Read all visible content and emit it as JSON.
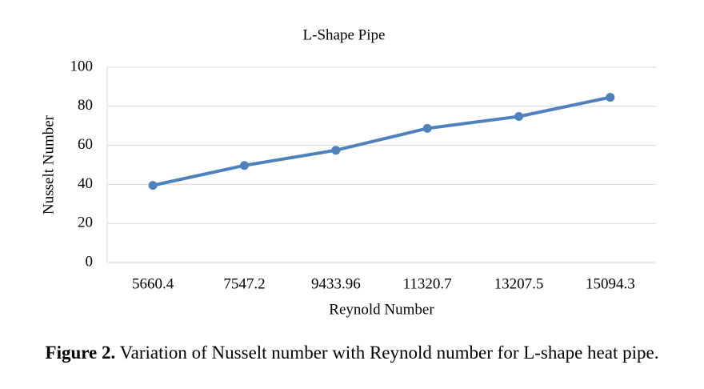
{
  "chart_data": {
    "type": "line",
    "title": "L-Shape Pipe",
    "x_label": "Reynold Number",
    "y_label": "Nusselt Number",
    "categories": [
      "5660.4",
      "7547.2",
      "9433.96",
      "11320.7",
      "13207.5",
      "15094.3"
    ],
    "series": [
      {
        "name": "Nusselt Number",
        "color": "#4f81bd",
        "values": [
          39.5,
          49.7,
          57.5,
          68.7,
          74.8,
          84.6
        ]
      }
    ],
    "ylim": [
      0,
      100
    ],
    "yticks": [
      0,
      20,
      40,
      60,
      80,
      100
    ],
    "grid": true
  },
  "caption": {
    "label": "Figure 2.",
    "text": "Variation of Nusselt number with Reynold number for L-shape heat pipe."
  }
}
